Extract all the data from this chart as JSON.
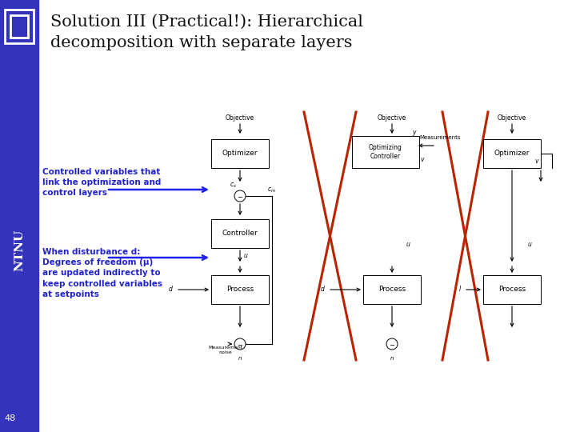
{
  "bg_color": "#f0f0f8",
  "sidebar_color": "#3333bb",
  "title_line1": "Solution III (Practical!): Hierarchical",
  "title_line2": "decomposition with separate layers",
  "title_color": "#111111",
  "title_fontsize": 15,
  "text_left1": "Controlled variables that\nlink the optimization and\ncontrol layers",
  "text_left2": "When disturbance d:\nDegrees of freedom (μ)\nare updated indirectly to\nkeep controlled variables\nat setpoints",
  "text_color_left": "#2222cc",
  "page_number": "48",
  "cross_color": "#bb2200",
  "cross_linewidth": 2.2
}
